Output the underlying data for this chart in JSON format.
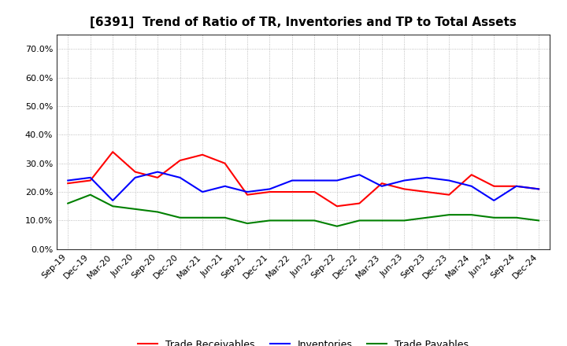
{
  "title": "[6391]  Trend of Ratio of TR, Inventories and TP to Total Assets",
  "x_labels": [
    "Sep-19",
    "Dec-19",
    "Mar-20",
    "Jun-20",
    "Sep-20",
    "Dec-20",
    "Mar-21",
    "Jun-21",
    "Sep-21",
    "Dec-21",
    "Mar-22",
    "Jun-22",
    "Sep-22",
    "Dec-22",
    "Mar-23",
    "Jun-23",
    "Sep-23",
    "Dec-23",
    "Mar-24",
    "Jun-24",
    "Sep-24",
    "Dec-24"
  ],
  "trade_receivables": [
    0.23,
    0.24,
    0.34,
    0.27,
    0.25,
    0.31,
    0.33,
    0.3,
    0.19,
    0.2,
    0.2,
    0.2,
    0.15,
    0.16,
    0.23,
    0.21,
    0.2,
    0.19,
    0.26,
    0.22,
    0.22,
    0.21
  ],
  "inventories": [
    0.24,
    0.25,
    0.17,
    0.25,
    0.27,
    0.25,
    0.2,
    0.22,
    0.2,
    0.21,
    0.24,
    0.24,
    0.24,
    0.26,
    0.22,
    0.24,
    0.25,
    0.24,
    0.22,
    0.17,
    0.22,
    0.21
  ],
  "trade_payables": [
    0.16,
    0.19,
    0.15,
    0.14,
    0.13,
    0.11,
    0.11,
    0.11,
    0.09,
    0.1,
    0.1,
    0.1,
    0.08,
    0.1,
    0.1,
    0.1,
    0.11,
    0.12,
    0.12,
    0.11,
    0.11,
    0.1
  ],
  "ylim": [
    0.0,
    0.75
  ],
  "yticks": [
    0.0,
    0.1,
    0.2,
    0.3,
    0.4,
    0.5,
    0.6,
    0.7
  ],
  "line_colors": {
    "trade_receivables": "#ff0000",
    "inventories": "#0000ff",
    "trade_payables": "#008000"
  },
  "legend_labels": [
    "Trade Receivables",
    "Inventories",
    "Trade Payables"
  ],
  "background_color": "#ffffff",
  "plot_bg_color": "#ffffff",
  "grid_color": "#999999",
  "title_fontsize": 11,
  "tick_fontsize": 8,
  "legend_fontsize": 9
}
